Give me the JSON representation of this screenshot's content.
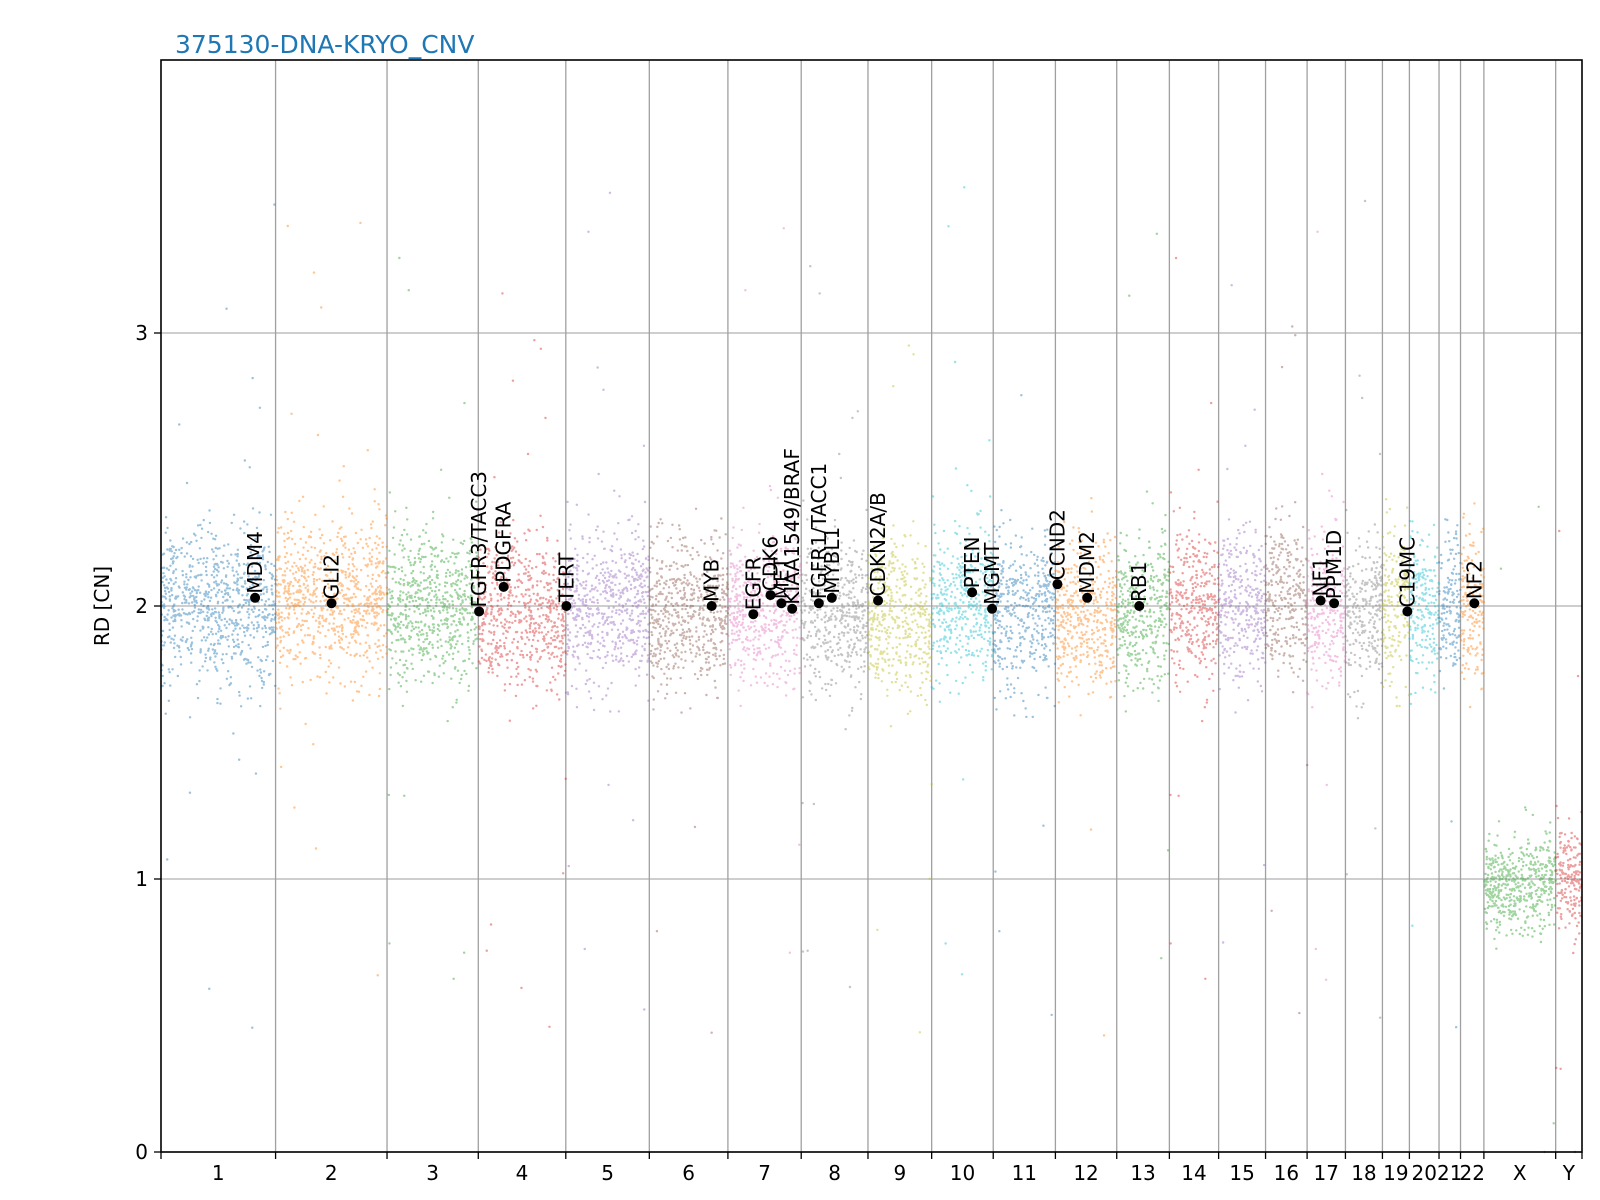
{
  "chart_data": {
    "type": "scatter",
    "title": "375130-DNA-KRYO_CNV",
    "xlabel": "",
    "ylabel": "RD [CN]",
    "ylim": [
      0,
      4
    ],
    "yticks": [
      0,
      1,
      2,
      3
    ],
    "grid": true,
    "legend": "none",
    "palette": [
      "#1f77b4",
      "#ff7f0e",
      "#2ca02c",
      "#d62728",
      "#9467bd",
      "#8c564b",
      "#e377c2",
      "#7f7f7f",
      "#bcbd22",
      "#17becf"
    ],
    "chromosomes": [
      {
        "label": "1",
        "length": 249.0,
        "mean_rd": 2.0
      },
      {
        "label": "2",
        "length": 242.2,
        "mean_rd": 2.02
      },
      {
        "label": "3",
        "length": 198.3,
        "mean_rd": 2.0
      },
      {
        "label": "4",
        "length": 190.2,
        "mean_rd": 1.97
      },
      {
        "label": "5",
        "length": 181.5,
        "mean_rd": 2.0
      },
      {
        "label": "6",
        "length": 170.8,
        "mean_rd": 1.98
      },
      {
        "label": "7",
        "length": 159.3,
        "mean_rd": 2.0
      },
      {
        "label": "8",
        "length": 145.1,
        "mean_rd": 1.97
      },
      {
        "label": "9",
        "length": 138.4,
        "mean_rd": 1.95
      },
      {
        "label": "10",
        "length": 133.8,
        "mean_rd": 2.02
      },
      {
        "label": "11",
        "length": 135.1,
        "mean_rd": 1.98
      },
      {
        "label": "12",
        "length": 133.3,
        "mean_rd": 1.97
      },
      {
        "label": "13",
        "length": 114.4,
        "mean_rd": 1.98
      },
      {
        "label": "14",
        "length": 107.0,
        "mean_rd": 2.0
      },
      {
        "label": "15",
        "length": 102.0,
        "mean_rd": 2.0
      },
      {
        "label": "16",
        "length": 90.3,
        "mean_rd": 2.02
      },
      {
        "label": "17",
        "length": 83.3,
        "mean_rd": 2.0
      },
      {
        "label": "18",
        "length": 80.4,
        "mean_rd": 1.97
      },
      {
        "label": "19",
        "length": 58.6,
        "mean_rd": 2.02
      },
      {
        "label": "20",
        "length": 64.4,
        "mean_rd": 2.0
      },
      {
        "label": "21",
        "length": 46.7,
        "mean_rd": 2.0
      },
      {
        "label": "22",
        "length": 50.8,
        "mean_rd": 2.0
      },
      {
        "label": "X",
        "length": 156.0,
        "mean_rd": 0.98
      },
      {
        "label": "Y",
        "length": 57.2,
        "mean_rd": 1.0
      }
    ],
    "genes": [
      {
        "name": "MDM4",
        "chrom": "1",
        "pos": 204.5,
        "rd": 2.03
      },
      {
        "name": "GLI2",
        "chrom": "2",
        "pos": 121.6,
        "rd": 2.01
      },
      {
        "name": "FGFR3/TACC3",
        "chrom": "4",
        "pos": 1.8,
        "rd": 1.98
      },
      {
        "name": "PDGFRA",
        "chrom": "4",
        "pos": 55.1,
        "rd": 2.07
      },
      {
        "name": "TERT",
        "chrom": "5",
        "pos": 1.3,
        "rd": 2.0
      },
      {
        "name": "MYB",
        "chrom": "6",
        "pos": 135.5,
        "rd": 2.0
      },
      {
        "name": "EGFR",
        "chrom": "7",
        "pos": 55.2,
        "rd": 1.97
      },
      {
        "name": "CDK6",
        "chrom": "7",
        "pos": 92.6,
        "rd": 2.04
      },
      {
        "name": "MET",
        "chrom": "7",
        "pos": 116.3,
        "rd": 2.01
      },
      {
        "name": "KIAA1549/BRAF",
        "chrom": "7",
        "pos": 139.7,
        "rd": 1.99
      },
      {
        "name": "FGFR1/TACC1",
        "chrom": "8",
        "pos": 38.3,
        "rd": 2.01
      },
      {
        "name": "MYBL1",
        "chrom": "8",
        "pos": 66.5,
        "rd": 2.03
      },
      {
        "name": "CDKN2A/B",
        "chrom": "9",
        "pos": 21.9,
        "rd": 2.02
      },
      {
        "name": "PTEN",
        "chrom": "10",
        "pos": 87.9,
        "rd": 2.05
      },
      {
        "name": "MGMT",
        "chrom": "10",
        "pos": 131.3,
        "rd": 1.99
      },
      {
        "name": "CCND2",
        "chrom": "12",
        "pos": 4.4,
        "rd": 2.08
      },
      {
        "name": "MDM2",
        "chrom": "12",
        "pos": 69.2,
        "rd": 2.03
      },
      {
        "name": "RB1",
        "chrom": "13",
        "pos": 48.9,
        "rd": 2.0
      },
      {
        "name": "NF1",
        "chrom": "17",
        "pos": 29.4,
        "rd": 2.02
      },
      {
        "name": "PPM1D",
        "chrom": "17",
        "pos": 58.7,
        "rd": 2.01
      },
      {
        "name": "C19MC",
        "chrom": "19",
        "pos": 54.2,
        "rd": 1.98
      },
      {
        "name": "NF2",
        "chrom": "22",
        "pos": 30.0,
        "rd": 2.01
      }
    ]
  }
}
